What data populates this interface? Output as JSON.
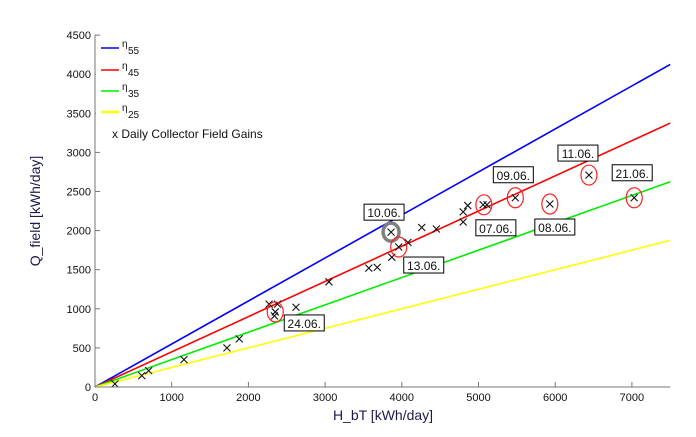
{
  "chart_data": {
    "type": "scatter",
    "title": "",
    "xlabel": "H_bT [kWh/day]",
    "ylabel": "Q_field [kWh/day]",
    "xlim": [
      0,
      7500
    ],
    "ylim": [
      0,
      4500
    ],
    "xticks": [
      0,
      1000,
      2000,
      3000,
      4000,
      5000,
      6000,
      7000
    ],
    "yticks": [
      0,
      500,
      1000,
      1500,
      2000,
      2500,
      3000,
      3500,
      4000,
      4500
    ],
    "grid": false,
    "legend_position": "top-left",
    "lines": [
      {
        "name": "η",
        "sub": "55",
        "slope": 0.55,
        "color": "#0000ff"
      },
      {
        "name": "η",
        "sub": "45",
        "slope": 0.45,
        "color": "#ff0000"
      },
      {
        "name": "η",
        "sub": "35",
        "slope": 0.35,
        "color": "#00ee00"
      },
      {
        "name": "η",
        "sub": "25",
        "slope": 0.25,
        "color": "#ffff00"
      }
    ],
    "scatter_legend": "x Daily Collector Field Gains",
    "points": [
      [
        260,
        40
      ],
      [
        610,
        145
      ],
      [
        700,
        210
      ],
      [
        1160,
        350
      ],
      [
        1720,
        500
      ],
      [
        1880,
        615
      ],
      [
        2270,
        1060
      ],
      [
        2380,
        1060
      ],
      [
        2350,
        960
      ],
      [
        2340,
        910
      ],
      [
        2620,
        1020
      ],
      [
        3050,
        1345
      ],
      [
        3570,
        1520
      ],
      [
        3680,
        1530
      ],
      [
        3870,
        1660
      ],
      [
        3860,
        1980
      ],
      [
        3960,
        1790
      ],
      [
        4080,
        1850
      ],
      [
        4260,
        2040
      ],
      [
        4450,
        2020
      ],
      [
        4800,
        2110
      ],
      [
        4800,
        2240
      ],
      [
        4860,
        2320
      ],
      [
        5060,
        2330
      ],
      [
        5110,
        2330
      ],
      [
        5480,
        2420
      ],
      [
        5930,
        2340
      ],
      [
        6440,
        2710
      ],
      [
        7030,
        2420
      ]
    ],
    "annotations": [
      {
        "text": "10.06.",
        "x": 3860,
        "y": 1980,
        "highlight": "gray"
      },
      {
        "text": "13.06.",
        "x": 3960,
        "y": 1790,
        "highlight": "red"
      },
      {
        "text": "24.06.",
        "x": 2350,
        "y": 960,
        "highlight": "red"
      },
      {
        "text": "07.06.",
        "x": 5070,
        "y": 2330,
        "highlight": "red"
      },
      {
        "text": "09.06.",
        "x": 5480,
        "y": 2420,
        "highlight": "red"
      },
      {
        "text": "08.06.",
        "x": 5930,
        "y": 2340,
        "highlight": "red"
      },
      {
        "text": "11.06.",
        "x": 6440,
        "y": 2710,
        "highlight": "red"
      },
      {
        "text": "21.06.",
        "x": 7030,
        "y": 2420,
        "highlight": "red"
      }
    ]
  }
}
